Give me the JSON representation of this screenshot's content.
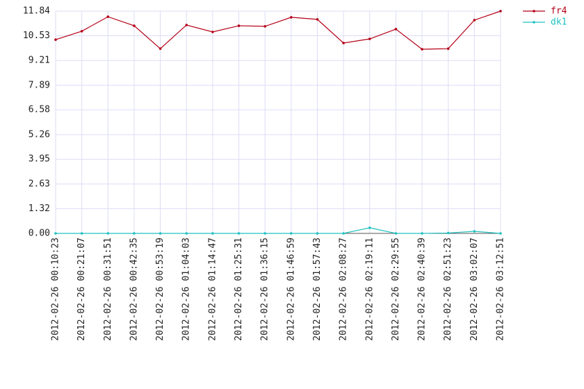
{
  "chart_data": {
    "type": "line",
    "categories": [
      "2012-02-26 00:10:23",
      "2012-02-26 00:21:07",
      "2012-02-26 00:31:51",
      "2012-02-26 00:42:35",
      "2012-02-26 00:53:19",
      "2012-02-26 01:04:03",
      "2012-02-26 01:14:47",
      "2012-02-26 01:25:31",
      "2012-02-26 01:36:15",
      "2012-02-26 01:46:59",
      "2012-02-26 01:57:43",
      "2012-02-26 02:08:27",
      "2012-02-26 02:19:11",
      "2012-02-26 02:29:55",
      "2012-02-26 02:40:39",
      "2012-02-26 02:51:23",
      "2012-02-26 03:02:07",
      "2012-02-26 03:12:51"
    ],
    "series": [
      {
        "name": "fr4",
        "color": "#b40016",
        "values": [
          10.32,
          10.77,
          11.54,
          11.06,
          9.84,
          11.1,
          10.73,
          11.06,
          11.03,
          11.51,
          11.4,
          10.14,
          10.36,
          10.88,
          9.81,
          9.84,
          11.36,
          11.84
        ]
      },
      {
        "name": "dk1",
        "color": "#20c0c0",
        "values": [
          0,
          0,
          0,
          0,
          0,
          0,
          0,
          0,
          0,
          0,
          0,
          0,
          0.3,
          0,
          0,
          0.02,
          0.11,
          0
        ]
      }
    ],
    "ylim": [
      0,
      11.84
    ],
    "yticks": [
      {
        "value": 0,
        "label": "0.00"
      },
      1.32,
      2.63,
      3.95,
      5.26,
      6.58,
      7.89,
      9.21,
      10.53,
      11.84
    ],
    "grid": true,
    "legend": "top-right"
  }
}
